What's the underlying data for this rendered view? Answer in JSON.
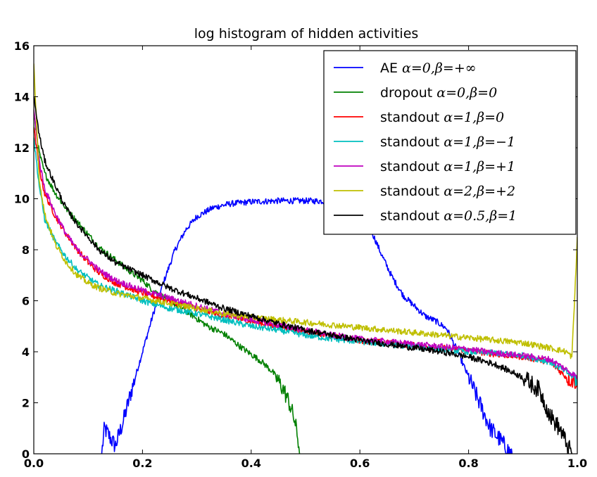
{
  "chart_data": {
    "type": "line",
    "title": "log histogram of hidden activities",
    "xlabel": "",
    "ylabel": "",
    "xlim": [
      0.0,
      1.0
    ],
    "ylim": [
      0,
      16
    ],
    "xticks": [
      "0.0",
      "0.2",
      "0.4",
      "0.6",
      "0.8",
      "1.0"
    ],
    "yticks": [
      "0",
      "2",
      "4",
      "6",
      "8",
      "10",
      "12",
      "14",
      "16"
    ],
    "grid": false,
    "legend_position": "top-right",
    "series": [
      {
        "name": "AE",
        "label_math": "α=0,β=+∞",
        "color": "#0000ff",
        "points": [
          [
            0.125,
            0.0
          ],
          [
            0.13,
            1.0
          ],
          [
            0.15,
            0.3
          ],
          [
            0.165,
            1.3
          ],
          [
            0.18,
            2.5
          ],
          [
            0.2,
            4.0
          ],
          [
            0.22,
            5.5
          ],
          [
            0.24,
            6.8
          ],
          [
            0.26,
            8.0
          ],
          [
            0.28,
            8.8
          ],
          [
            0.3,
            9.3
          ],
          [
            0.33,
            9.65
          ],
          [
            0.36,
            9.8
          ],
          [
            0.4,
            9.88
          ],
          [
            0.45,
            9.92
          ],
          [
            0.5,
            9.92
          ],
          [
            0.55,
            9.9
          ],
          [
            0.58,
            9.75
          ],
          [
            0.6,
            9.4
          ],
          [
            0.62,
            8.8
          ],
          [
            0.64,
            7.8
          ],
          [
            0.66,
            6.9
          ],
          [
            0.68,
            6.2
          ],
          [
            0.7,
            5.8
          ],
          [
            0.72,
            5.4
          ],
          [
            0.74,
            5.2
          ],
          [
            0.76,
            4.9
          ],
          [
            0.78,
            4.0
          ],
          [
            0.8,
            3.0
          ],
          [
            0.82,
            2.0
          ],
          [
            0.84,
            1.0
          ],
          [
            0.86,
            0.5
          ],
          [
            0.87,
            0.2
          ],
          [
            0.88,
            0.0
          ]
        ]
      },
      {
        "name": "dropout",
        "label_math": "α=0,β=0",
        "color": "#008000",
        "points": [
          [
            0.0,
            13.3
          ],
          [
            0.01,
            11.8
          ],
          [
            0.02,
            11.0
          ],
          [
            0.04,
            10.2
          ],
          [
            0.06,
            9.6
          ],
          [
            0.08,
            9.1
          ],
          [
            0.1,
            8.6
          ],
          [
            0.12,
            8.1
          ],
          [
            0.15,
            7.6
          ],
          [
            0.18,
            7.1
          ],
          [
            0.2,
            6.8
          ],
          [
            0.22,
            6.4
          ],
          [
            0.25,
            6.0
          ],
          [
            0.28,
            5.6
          ],
          [
            0.3,
            5.3
          ],
          [
            0.32,
            5.0
          ],
          [
            0.35,
            4.7
          ],
          [
            0.38,
            4.2
          ],
          [
            0.4,
            3.9
          ],
          [
            0.42,
            3.6
          ],
          [
            0.44,
            3.2
          ],
          [
            0.46,
            2.5
          ],
          [
            0.47,
            2.0
          ],
          [
            0.48,
            1.3
          ],
          [
            0.485,
            0.7
          ],
          [
            0.49,
            0.0
          ]
        ]
      },
      {
        "name": "standout",
        "label_math": "α=1,β=0",
        "color": "#ff0000",
        "points": [
          [
            0.0,
            12.8
          ],
          [
            0.01,
            11.2
          ],
          [
            0.02,
            10.2
          ],
          [
            0.04,
            9.3
          ],
          [
            0.06,
            8.6
          ],
          [
            0.08,
            8.0
          ],
          [
            0.1,
            7.5
          ],
          [
            0.12,
            7.1
          ],
          [
            0.15,
            6.7
          ],
          [
            0.2,
            6.3
          ],
          [
            0.25,
            6.0
          ],
          [
            0.3,
            5.7
          ],
          [
            0.35,
            5.4
          ],
          [
            0.4,
            5.2
          ],
          [
            0.45,
            5.0
          ],
          [
            0.5,
            4.8
          ],
          [
            0.55,
            4.6
          ],
          [
            0.6,
            4.45
          ],
          [
            0.65,
            4.35
          ],
          [
            0.7,
            4.25
          ],
          [
            0.75,
            4.15
          ],
          [
            0.8,
            4.05
          ],
          [
            0.85,
            3.9
          ],
          [
            0.9,
            3.8
          ],
          [
            0.95,
            3.6
          ],
          [
            0.98,
            3.0
          ],
          [
            1.0,
            2.8
          ]
        ]
      },
      {
        "name": "standout",
        "label_math": "α=1,β=−1",
        "color": "#00bfbf",
        "points": [
          [
            0.0,
            12.4
          ],
          [
            0.01,
            10.5
          ],
          [
            0.02,
            9.2
          ],
          [
            0.04,
            8.3
          ],
          [
            0.06,
            7.7
          ],
          [
            0.08,
            7.2
          ],
          [
            0.1,
            6.9
          ],
          [
            0.12,
            6.6
          ],
          [
            0.15,
            6.4
          ],
          [
            0.2,
            6.0
          ],
          [
            0.25,
            5.7
          ],
          [
            0.3,
            5.5
          ],
          [
            0.35,
            5.25
          ],
          [
            0.4,
            5.0
          ],
          [
            0.45,
            4.85
          ],
          [
            0.5,
            4.65
          ],
          [
            0.55,
            4.5
          ],
          [
            0.6,
            4.4
          ],
          [
            0.65,
            4.3
          ],
          [
            0.7,
            4.2
          ],
          [
            0.75,
            4.1
          ],
          [
            0.8,
            4.0
          ],
          [
            0.85,
            3.95
          ],
          [
            0.9,
            3.85
          ],
          [
            0.95,
            3.6
          ],
          [
            0.98,
            3.2
          ],
          [
            1.0,
            2.9
          ]
        ]
      },
      {
        "name": "standout",
        "label_math": "α=1,β=+1",
        "color": "#bf00bf",
        "points": [
          [
            0.0,
            13.5
          ],
          [
            0.01,
            11.5
          ],
          [
            0.02,
            10.4
          ],
          [
            0.04,
            9.4
          ],
          [
            0.06,
            8.6
          ],
          [
            0.08,
            8.0
          ],
          [
            0.1,
            7.6
          ],
          [
            0.12,
            7.2
          ],
          [
            0.15,
            6.8
          ],
          [
            0.2,
            6.4
          ],
          [
            0.25,
            6.1
          ],
          [
            0.3,
            5.8
          ],
          [
            0.35,
            5.5
          ],
          [
            0.4,
            5.25
          ],
          [
            0.45,
            5.05
          ],
          [
            0.5,
            4.85
          ],
          [
            0.55,
            4.65
          ],
          [
            0.6,
            4.5
          ],
          [
            0.65,
            4.4
          ],
          [
            0.7,
            4.3
          ],
          [
            0.75,
            4.2
          ],
          [
            0.8,
            4.1
          ],
          [
            0.85,
            3.95
          ],
          [
            0.9,
            3.85
          ],
          [
            0.95,
            3.7
          ],
          [
            0.98,
            3.3
          ],
          [
            1.0,
            3.0
          ]
        ]
      },
      {
        "name": "standout",
        "label_math": "α=2,β=+2",
        "color": "#bfbf00",
        "points": [
          [
            0.0,
            15.3
          ],
          [
            0.005,
            13.0
          ],
          [
            0.01,
            10.8
          ],
          [
            0.02,
            9.4
          ],
          [
            0.04,
            8.2
          ],
          [
            0.06,
            7.5
          ],
          [
            0.08,
            7.0
          ],
          [
            0.1,
            6.7
          ],
          [
            0.12,
            6.5
          ],
          [
            0.15,
            6.3
          ],
          [
            0.2,
            6.1
          ],
          [
            0.25,
            5.9
          ],
          [
            0.3,
            5.7
          ],
          [
            0.35,
            5.5
          ],
          [
            0.4,
            5.35
          ],
          [
            0.45,
            5.25
          ],
          [
            0.5,
            5.15
          ],
          [
            0.55,
            5.05
          ],
          [
            0.6,
            4.95
          ],
          [
            0.65,
            4.85
          ],
          [
            0.7,
            4.75
          ],
          [
            0.75,
            4.65
          ],
          [
            0.8,
            4.55
          ],
          [
            0.85,
            4.45
          ],
          [
            0.9,
            4.35
          ],
          [
            0.95,
            4.15
          ],
          [
            0.98,
            4.0
          ],
          [
            0.99,
            3.8
          ],
          [
            0.995,
            6.0
          ],
          [
            1.0,
            8.5
          ]
        ]
      },
      {
        "name": "standout",
        "label_math": "α=0.5,β=1",
        "color": "#000000",
        "points": [
          [
            0.0,
            14.0
          ],
          [
            0.01,
            12.5
          ],
          [
            0.02,
            11.5
          ],
          [
            0.04,
            10.5
          ],
          [
            0.06,
            9.6
          ],
          [
            0.08,
            9.0
          ],
          [
            0.1,
            8.5
          ],
          [
            0.12,
            8.0
          ],
          [
            0.15,
            7.5
          ],
          [
            0.2,
            7.0
          ],
          [
            0.25,
            6.5
          ],
          [
            0.3,
            6.1
          ],
          [
            0.35,
            5.7
          ],
          [
            0.4,
            5.4
          ],
          [
            0.45,
            5.1
          ],
          [
            0.5,
            4.85
          ],
          [
            0.55,
            4.65
          ],
          [
            0.6,
            4.45
          ],
          [
            0.65,
            4.3
          ],
          [
            0.7,
            4.15
          ],
          [
            0.75,
            4.0
          ],
          [
            0.8,
            3.8
          ],
          [
            0.85,
            3.5
          ],
          [
            0.9,
            3.0
          ],
          [
            0.93,
            2.5
          ],
          [
            0.95,
            1.5
          ],
          [
            0.97,
            0.9
          ],
          [
            0.98,
            0.4
          ],
          [
            0.99,
            0.0
          ]
        ]
      }
    ]
  }
}
